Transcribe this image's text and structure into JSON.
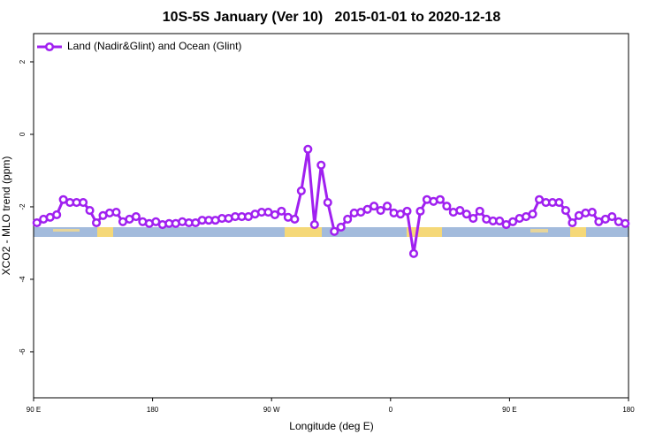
{
  "chart_data": {
    "type": "line",
    "title": "10S-5S January (Ver 10)   2015-01-01 to 2020-12-18",
    "x_label": "Longitude (deg E)",
    "y_label": "XCO2 - MLO trend (ppm)",
    "x": [
      92.5,
      97.5,
      102.5,
      107.5,
      112.5,
      117.5,
      122.5,
      127.5,
      132.5,
      137.5,
      142.5,
      147.5,
      152.5,
      157.5,
      162.5,
      167.5,
      172.5,
      177.5,
      182.5,
      187.5,
      192.5,
      197.5,
      202.5,
      207.5,
      212.5,
      217.5,
      222.5,
      227.5,
      232.5,
      237.5,
      242.5,
      247.5,
      252.5,
      257.5,
      262.5,
      267.5,
      272.5,
      277.5,
      282.5,
      287.5,
      292.5,
      297.5,
      302.5,
      307.5,
      312.5,
      317.5,
      322.5,
      327.5,
      332.5,
      337.5,
      342.5,
      347.5,
      352.5,
      357.5,
      362.5,
      367.5,
      372.5,
      377.5,
      382.5,
      387.5,
      392.5,
      397.5,
      402.5,
      407.5,
      412.5,
      417.5,
      422.5,
      427.5,
      432.5,
      437.5,
      442.5,
      447.5,
      452.5,
      457.5,
      462.5,
      467.5,
      472.5,
      477.5,
      482.5,
      487.5,
      492.5,
      497.5,
      502.5,
      507.5,
      512.5,
      517.5,
      522.5,
      527.5,
      532.5,
      537.5
    ],
    "series": [
      {
        "name": "Land (Nadir&Glint) and Ocean (Glint)",
        "color": "#a020f0",
        "values": [
          -2.44,
          -2.34,
          -2.29,
          -2.22,
          -1.8,
          -1.88,
          -1.88,
          -1.88,
          -2.1,
          -2.44,
          -2.24,
          -2.17,
          -2.15,
          -2.41,
          -2.34,
          -2.27,
          -2.41,
          -2.46,
          -2.41,
          -2.49,
          -2.46,
          -2.46,
          -2.41,
          -2.44,
          -2.44,
          -2.37,
          -2.37,
          -2.37,
          -2.32,
          -2.32,
          -2.27,
          -2.27,
          -2.27,
          -2.2,
          -2.15,
          -2.15,
          -2.22,
          -2.12,
          -2.29,
          -2.34,
          -1.56,
          -0.41,
          -2.49,
          -0.85,
          -1.88,
          -2.68,
          -2.56,
          -2.34,
          -2.17,
          -2.15,
          -2.07,
          -1.98,
          -2.1,
          -1.98,
          -2.17,
          -2.2,
          -2.12,
          -3.29,
          -2.12,
          -1.8,
          -1.85,
          -1.8,
          -1.98,
          -2.15,
          -2.1,
          -2.2,
          -2.32,
          -2.12,
          -2.34,
          -2.39,
          -2.39,
          -2.49,
          -2.41,
          -2.32,
          -2.27,
          -2.2,
          -1.8,
          -1.88,
          -1.88,
          -1.88,
          -2.1,
          -2.44,
          -2.24,
          -2.17,
          -2.15,
          -2.41,
          -2.34,
          -2.27,
          -2.41,
          -2.46
        ]
      }
    ],
    "xlim": [
      90,
      540
    ],
    "xticks": [
      {
        "value": 90,
        "label": "90 E"
      },
      180,
      {
        "value": 270,
        "label": "90 W"
      },
      {
        "value": 360,
        "label": "0"
      },
      {
        "value": 450,
        "label": "90 E"
      },
      {
        "value": 540,
        "label": "180"
      }
    ],
    "ylim": [
      -7.27,
      2.78
    ],
    "yticks": [
      2,
      0,
      -2,
      -4,
      -6
    ],
    "legend": "top-left"
  }
}
